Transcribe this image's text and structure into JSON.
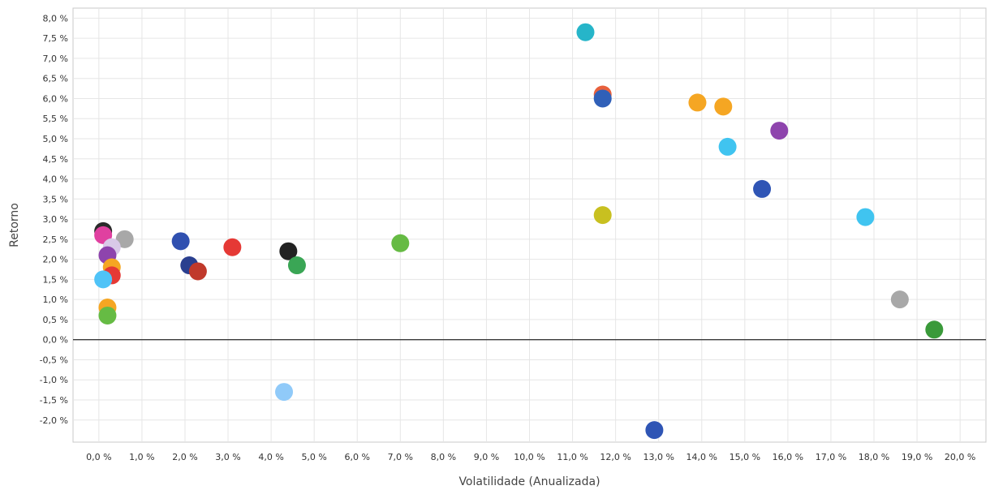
{
  "chart_data": {
    "type": "scatter",
    "xlabel": "Volatilidade (Anualizada)",
    "ylabel": "Retorno",
    "xlim": [
      -0.6,
      20.6
    ],
    "ylim": [
      -2.55,
      8.25
    ],
    "grid": true,
    "x_ticks": [
      0.0,
      1.0,
      2.0,
      3.0,
      4.0,
      5.0,
      6.0,
      7.0,
      8.0,
      9.0,
      10.0,
      11.0,
      12.0,
      13.0,
      14.0,
      15.0,
      16.0,
      17.0,
      18.0,
      19.0,
      20.0
    ],
    "x_tick_labels": [
      "0,0 %",
      "1,0 %",
      "2,0 %",
      "3,0 %",
      "4,0 %",
      "5,0 %",
      "6,0 %",
      "7,0 %",
      "8,0 %",
      "9,0 %",
      "10,0 %",
      "11,0 %",
      "12,0 %",
      "13,0 %",
      "14,0 %",
      "15,0 %",
      "16,0 %",
      "17,0 %",
      "18,0 %",
      "19,0 %",
      "20,0 %"
    ],
    "y_ticks": [
      8.0,
      7.5,
      7.0,
      6.5,
      6.0,
      5.5,
      5.0,
      4.5,
      4.0,
      3.5,
      3.0,
      2.5,
      2.0,
      1.5,
      1.0,
      0.5,
      0.0,
      -0.5,
      -1.0,
      -1.5,
      -2.0
    ],
    "y_tick_labels": [
      "8,0 %",
      "7,5 %",
      "7,0 %",
      "6,5 %",
      "6,0 %",
      "5,5 %",
      "5,0 %",
      "4,5 %",
      "4,0 %",
      "3,5 %",
      "3,0 %",
      "2,5 %",
      "2,0 %",
      "1,5 %",
      "1,0 %",
      "0,5 %",
      "0,0 %",
      "-0,5 %",
      "-1,0 %",
      "-1,5 %",
      "-2,0 %"
    ],
    "reference_line_y": 0.0,
    "points": [
      {
        "x": 0.1,
        "y": 2.7,
        "color": "#2b2b2b"
      },
      {
        "x": 0.1,
        "y": 2.6,
        "color": "#e040a0"
      },
      {
        "x": 0.6,
        "y": 2.5,
        "color": "#a8a8a8"
      },
      {
        "x": 0.3,
        "y": 2.3,
        "color": "#d9c9e8"
      },
      {
        "x": 0.2,
        "y": 2.1,
        "color": "#8e44ad"
      },
      {
        "x": 0.3,
        "y": 1.8,
        "color": "#f5a623"
      },
      {
        "x": 0.3,
        "y": 1.6,
        "color": "#e53935"
      },
      {
        "x": 0.1,
        "y": 1.5,
        "color": "#4fc3f7"
      },
      {
        "x": 0.2,
        "y": 0.8,
        "color": "#f5a623"
      },
      {
        "x": 0.2,
        "y": 0.6,
        "color": "#66bb44"
      },
      {
        "x": 1.9,
        "y": 2.45,
        "color": "#3050b0"
      },
      {
        "x": 2.1,
        "y": 1.85,
        "color": "#2a3f8f"
      },
      {
        "x": 2.3,
        "y": 1.7,
        "color": "#c0392b"
      },
      {
        "x": 3.1,
        "y": 2.3,
        "color": "#e53935"
      },
      {
        "x": 4.4,
        "y": 2.2,
        "color": "#222222"
      },
      {
        "x": 4.6,
        "y": 1.85,
        "color": "#3aa655"
      },
      {
        "x": 4.3,
        "y": -1.3,
        "color": "#90caf9"
      },
      {
        "x": 7.0,
        "y": 2.4,
        "color": "#66bb44"
      },
      {
        "x": 11.3,
        "y": 7.65,
        "color": "#26b5c9"
      },
      {
        "x": 11.7,
        "y": 6.1,
        "color": "#e8603c"
      },
      {
        "x": 11.7,
        "y": 6.0,
        "color": "#3060b8"
      },
      {
        "x": 11.7,
        "y": 3.1,
        "color": "#c8c020"
      },
      {
        "x": 13.9,
        "y": 5.9,
        "color": "#f5a623"
      },
      {
        "x": 14.5,
        "y": 5.8,
        "color": "#f5a623"
      },
      {
        "x": 14.6,
        "y": 4.8,
        "color": "#40c4f0"
      },
      {
        "x": 15.8,
        "y": 5.2,
        "color": "#8e44ad"
      },
      {
        "x": 15.4,
        "y": 3.75,
        "color": "#2f55b5"
      },
      {
        "x": 17.8,
        "y": 3.05,
        "color": "#40c4f0"
      },
      {
        "x": 12.9,
        "y": -2.25,
        "color": "#2f55b5"
      },
      {
        "x": 18.6,
        "y": 1.0,
        "color": "#a8a8a8"
      },
      {
        "x": 19.4,
        "y": 0.25,
        "color": "#3a9a3a"
      }
    ]
  }
}
